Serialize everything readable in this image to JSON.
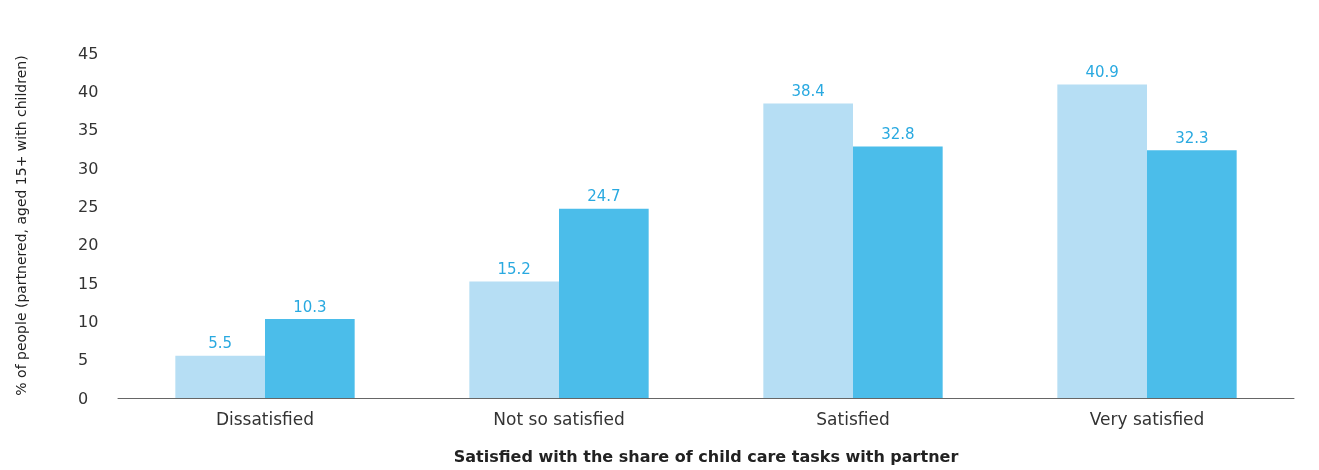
{
  "chart_data": {
    "type": "bar",
    "xlabel": "Satisfied with the share of child care tasks with partner",
    "ylabel": "% of people (partnered, aged 15+ with children)",
    "categories": [
      "Dissatisfied",
      "Not so satisfied",
      "Satisfied",
      "Very satisfied"
    ],
    "series": [
      {
        "color": "#b6def4",
        "values": [
          5.5,
          15.2,
          38.4,
          40.9
        ]
      },
      {
        "color": "#4bbdea",
        "values": [
          10.3,
          24.7,
          32.8,
          32.3
        ]
      }
    ],
    "ylim": [
      0,
      45
    ],
    "yticks": [
      0,
      5,
      10,
      15,
      20,
      25,
      30,
      35,
      40,
      45
    ],
    "grid": false,
    "data_labels": true
  }
}
